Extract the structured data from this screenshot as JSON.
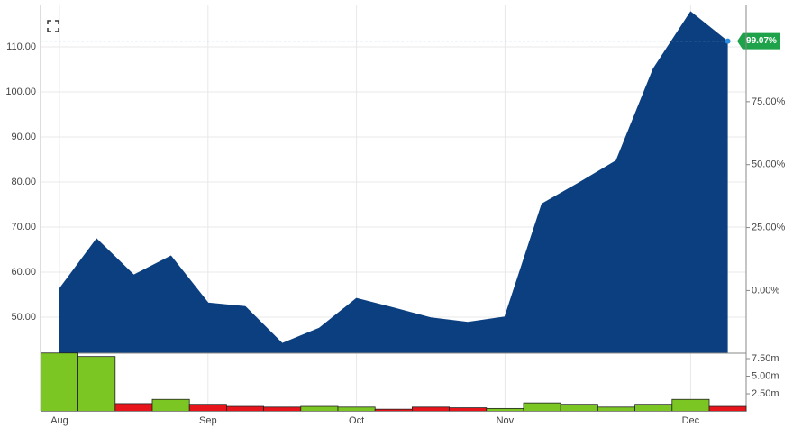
{
  "chart_data": [
    {
      "type": "area",
      "categories": [
        "Aug",
        null,
        null,
        null,
        "Sep",
        null,
        null,
        null,
        "Oct",
        null,
        null,
        null,
        "Nov",
        null,
        null,
        null,
        null,
        "Dec",
        null
      ],
      "series": [
        {
          "color": "#0b3f7f",
          "values": [
            56.2,
            67.3,
            59.3,
            63.5,
            53.1,
            52.3,
            44.1,
            47.5,
            54.1,
            52.0,
            49.8,
            48.8,
            50.0,
            75.1,
            79.8,
            84.7,
            105.1,
            117.7,
            111.1
          ]
        }
      ],
      "ylim": [
        42,
        119.4
      ],
      "yticks": [
        {
          "value": 50,
          "label": "50.00"
        },
        {
          "value": 60,
          "label": "60.00"
        },
        {
          "value": 70,
          "label": "70.00"
        },
        {
          "value": 80,
          "label": "80.00"
        },
        {
          "value": 90,
          "label": "90.00"
        },
        {
          "value": 100,
          "label": "100.00"
        },
        {
          "value": 110,
          "label": "110.00"
        }
      ],
      "y2lim": [
        -24.9,
        113.6
      ],
      "y2ticks": [
        {
          "value": 0,
          "label": "0.00%"
        },
        {
          "value": 25,
          "label": "25.00%"
        },
        {
          "value": 50,
          "label": "50.00%"
        },
        {
          "value": 75,
          "label": "75.00%"
        }
      ],
      "last_change": {
        "value": 99.07,
        "label": "99.07%"
      },
      "grid": true
    },
    {
      "type": "bar",
      "values": [
        8300000,
        7800000,
        1100000,
        1700000,
        1000000,
        700000,
        600000,
        700000,
        600000,
        300000,
        600000,
        500000,
        400000,
        1200000,
        1000000,
        600000,
        1000000,
        1700000,
        700000
      ],
      "colors": [
        "#7cc623",
        "#7cc623",
        "#e8141b",
        "#7cc623",
        "#e8141b",
        "#e8141b",
        "#e8141b",
        "#7cc623",
        "#7cc623",
        "#e8141b",
        "#e8141b",
        "#e8141b",
        "#7cc623",
        "#7cc623",
        "#7cc623",
        "#7cc623",
        "#7cc623",
        "#7cc623",
        "#e8141b"
      ],
      "ylim": [
        0,
        8270000
      ],
      "yticks": [
        {
          "value": 2500000,
          "label": "2.50m"
        },
        {
          "value": 5000000,
          "label": "5.00m"
        },
        {
          "value": 7500000,
          "label": "7.50m"
        }
      ]
    }
  ]
}
